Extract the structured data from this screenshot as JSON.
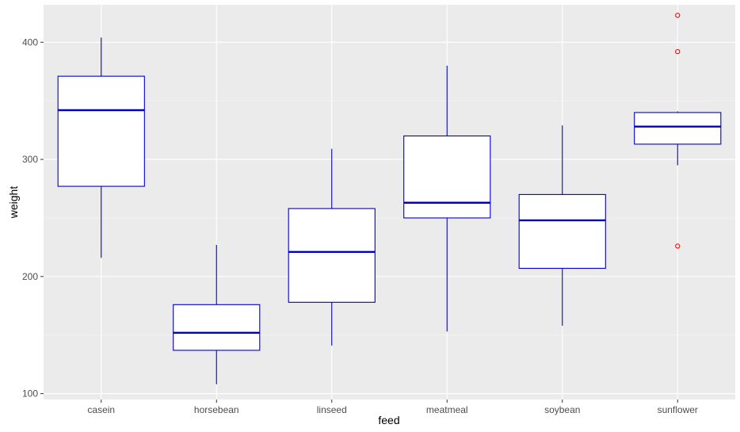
{
  "chart_data": {
    "type": "boxplot",
    "xlabel": "feed",
    "ylabel": "weight",
    "categories": [
      "casein",
      "horsebean",
      "linseed",
      "meatmeal",
      "soybean",
      "sunflower"
    ],
    "ylim": [
      95,
      432
    ],
    "yticks": [
      100,
      200,
      300,
      400
    ],
    "ytick_labels": [
      "100",
      "200",
      "300",
      "400"
    ],
    "grid": true,
    "boxes": [
      {
        "category": "casein",
        "whisker_low": 216,
        "q1": 277,
        "median": 342,
        "q3": 371,
        "whisker_high": 404,
        "outliers": []
      },
      {
        "category": "horsebean",
        "whisker_low": 108,
        "q1": 137,
        "median": 152,
        "q3": 176,
        "whisker_high": 227,
        "outliers": []
      },
      {
        "category": "linseed",
        "whisker_low": 141,
        "q1": 178,
        "median": 221,
        "q3": 258,
        "whisker_high": 309,
        "outliers": []
      },
      {
        "category": "meatmeal",
        "whisker_low": 153,
        "q1": 250,
        "median": 263,
        "q3": 320,
        "whisker_high": 380,
        "outliers": []
      },
      {
        "category": "soybean",
        "whisker_low": 158,
        "q1": 207,
        "median": 248,
        "q3": 270,
        "whisker_high": 329,
        "outliers": []
      },
      {
        "category": "sunflower",
        "whisker_low": 295,
        "q1": 313,
        "median": 328,
        "q3": 340,
        "whisker_high": 341,
        "outliers": [
          226,
          392,
          423
        ]
      }
    ],
    "colors": {
      "panel_background": "#ebebeb",
      "grid_major": "#ffffff",
      "grid_minor": "#f5f5f5",
      "box_outline": "#0000cd",
      "box_fill": "#ffffff",
      "outlier": "#ff0000"
    }
  }
}
